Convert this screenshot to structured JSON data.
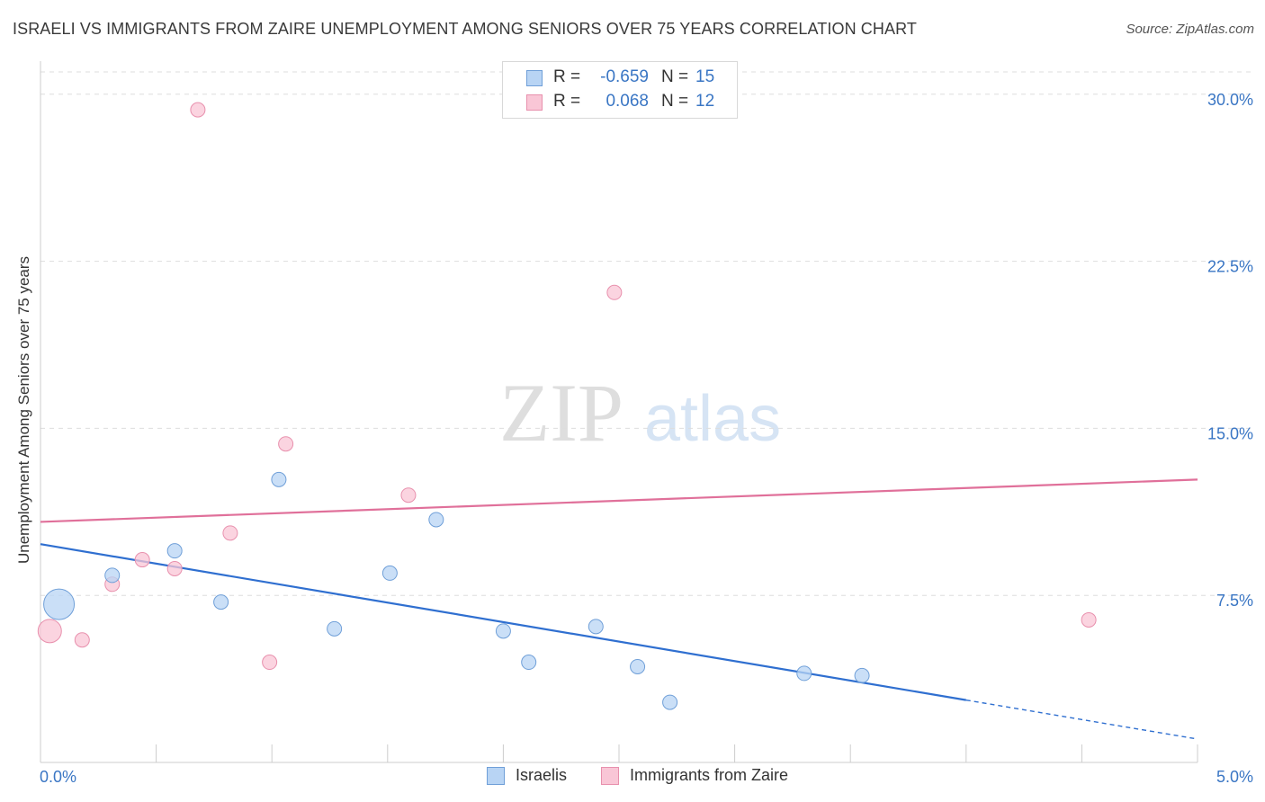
{
  "title": "ISRAELI VS IMMIGRANTS FROM ZAIRE UNEMPLOYMENT AMONG SENIORS OVER 75 YEARS CORRELATION CHART",
  "source": "Source: ZipAtlas.com",
  "watermark": {
    "zip": "ZIP",
    "atlas": "atlas"
  },
  "legend_top": {
    "r_label": "R =",
    "n_label": "N =",
    "rows": [
      {
        "r": "-0.659",
        "n": "15"
      },
      {
        "r": "0.068",
        "n": "12"
      }
    ]
  },
  "colors": {
    "israelis_fill": "#b8d4f4",
    "israelis_stroke": "#6f9fd8",
    "israelis_line": "#2f6fd0",
    "zaire_fill": "#f9c6d6",
    "zaire_stroke": "#e890ad",
    "zaire_line": "#e0709a",
    "tick_label": "#3a76c4",
    "grid": "#dddddd"
  },
  "chart_data": {
    "type": "scatter",
    "title": "ISRAELI VS IMMIGRANTS FROM ZAIRE UNEMPLOYMENT AMONG SENIORS OVER 75 YEARS CORRELATION CHART",
    "xlabel": "",
    "ylabel": "Unemployment Among Seniors over 75 years",
    "xlim": [
      0,
      5.0
    ],
    "ylim": [
      0,
      31.0
    ],
    "x_tick_labels": [
      "0.0%",
      "5.0%"
    ],
    "y_ticks": [
      7.5,
      15.0,
      22.5,
      30.0
    ],
    "y_tick_labels": [
      "7.5%",
      "15.0%",
      "22.5%",
      "30.0%"
    ],
    "grid": "horizontal dashed",
    "legend_position": "bottom",
    "series": [
      {
        "name": "Israelis",
        "points": [
          {
            "x": 0.08,
            "y": 7.1,
            "size": "large"
          },
          {
            "x": 0.31,
            "y": 8.4
          },
          {
            "x": 0.58,
            "y": 9.5
          },
          {
            "x": 0.78,
            "y": 7.2
          },
          {
            "x": 1.03,
            "y": 12.7
          },
          {
            "x": 1.27,
            "y": 6.0
          },
          {
            "x": 1.51,
            "y": 8.5
          },
          {
            "x": 1.71,
            "y": 10.9
          },
          {
            "x": 2.0,
            "y": 5.9
          },
          {
            "x": 2.11,
            "y": 4.5
          },
          {
            "x": 2.4,
            "y": 6.1
          },
          {
            "x": 2.58,
            "y": 4.3
          },
          {
            "x": 2.72,
            "y": 2.7
          },
          {
            "x": 3.3,
            "y": 4.0
          },
          {
            "x": 3.55,
            "y": 3.9
          }
        ],
        "trend": {
          "x0": 0.0,
          "y0": 9.8,
          "x1": 4.0,
          "y1": 2.8,
          "dashed_to": {
            "x": 5.0,
            "y": 1.05
          }
        }
      },
      {
        "name": "Immigrants from Zaire",
        "points": [
          {
            "x": 0.04,
            "y": 5.9,
            "size": "medium"
          },
          {
            "x": 0.18,
            "y": 5.5
          },
          {
            "x": 0.31,
            "y": 8.0
          },
          {
            "x": 0.44,
            "y": 9.1
          },
          {
            "x": 0.58,
            "y": 8.7
          },
          {
            "x": 0.68,
            "y": 29.3
          },
          {
            "x": 0.82,
            "y": 10.3
          },
          {
            "x": 0.99,
            "y": 4.5
          },
          {
            "x": 1.06,
            "y": 14.3
          },
          {
            "x": 1.59,
            "y": 12.0
          },
          {
            "x": 2.48,
            "y": 21.1
          },
          {
            "x": 4.53,
            "y": 6.4
          }
        ],
        "trend": {
          "x0": 0.0,
          "y0": 10.8,
          "x1": 5.0,
          "y1": 12.7
        }
      }
    ]
  }
}
